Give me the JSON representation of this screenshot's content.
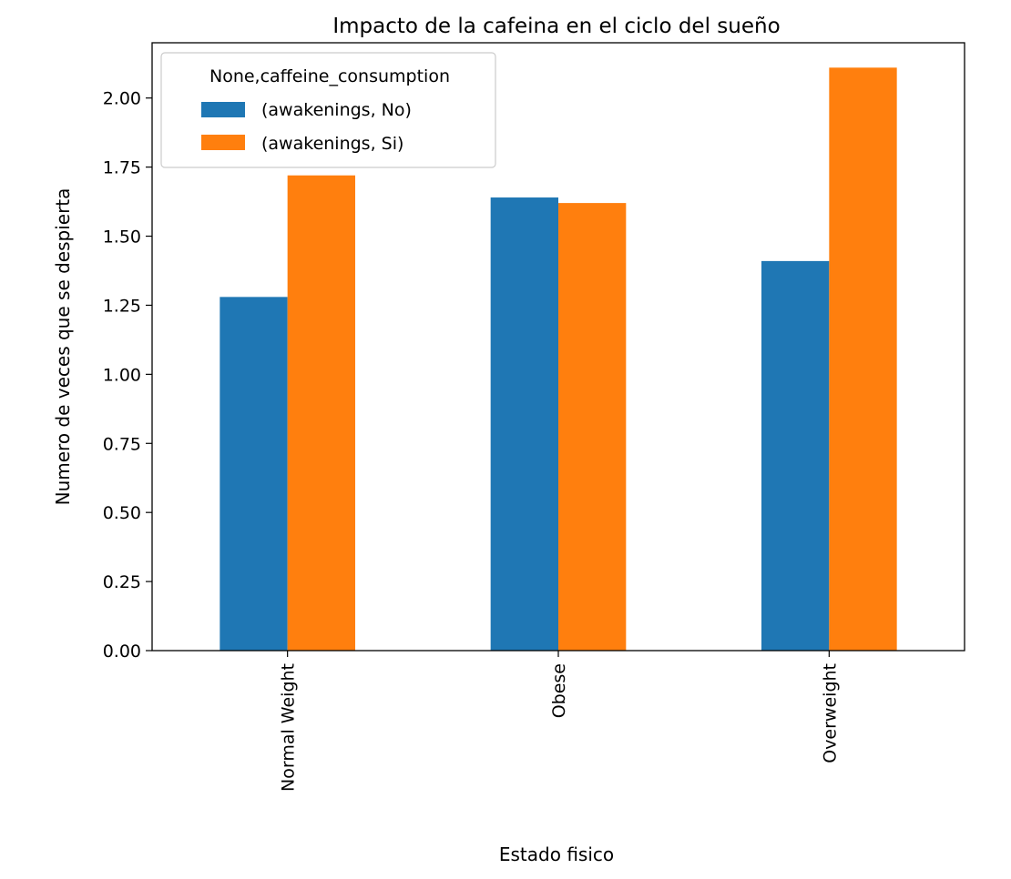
{
  "chart_data": {
    "type": "bar",
    "title": "Impacto de la cafeina en el ciclo del sueño",
    "xlabel": "Estado fisico",
    "ylabel": "Numero de veces que se despierta",
    "categories": [
      "Normal Weight",
      "Obese",
      "Overweight"
    ],
    "series": [
      {
        "name": "(awakenings, No)",
        "color": "#1f77b4",
        "values": [
          1.28,
          1.64,
          1.41
        ]
      },
      {
        "name": "(awakenings, Si)",
        "color": "#ff7f0e",
        "values": [
          1.72,
          1.62,
          2.11
        ]
      }
    ],
    "ylim": [
      0,
      2.2
    ],
    "yticks": [
      "0.00",
      "0.25",
      "0.50",
      "0.75",
      "1.00",
      "1.25",
      "1.50",
      "1.75",
      "2.00"
    ],
    "legend": {
      "title": "None,caffeine_consumption",
      "placement": "top-left"
    },
    "grid": false
  }
}
